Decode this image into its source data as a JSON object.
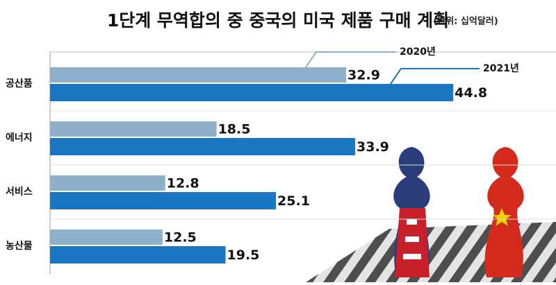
{
  "chart_data": {
    "type": "bar",
    "orientation": "horizontal",
    "title": "1단계 무역합의 중 중국의 미국 제품 구매 계획",
    "subtitle": "(단위: 십억달러)",
    "categories": [
      "공산품",
      "에너지",
      "서비스",
      "농산물"
    ],
    "series": [
      {
        "name": "2020년",
        "color": "#8fb0cc",
        "values": [
          32.9,
          18.5,
          12.8,
          12.5
        ]
      },
      {
        "name": "2021년",
        "color": "#1a76c0",
        "values": [
          44.8,
          33.9,
          25.1,
          19.5
        ]
      }
    ]
  }
}
